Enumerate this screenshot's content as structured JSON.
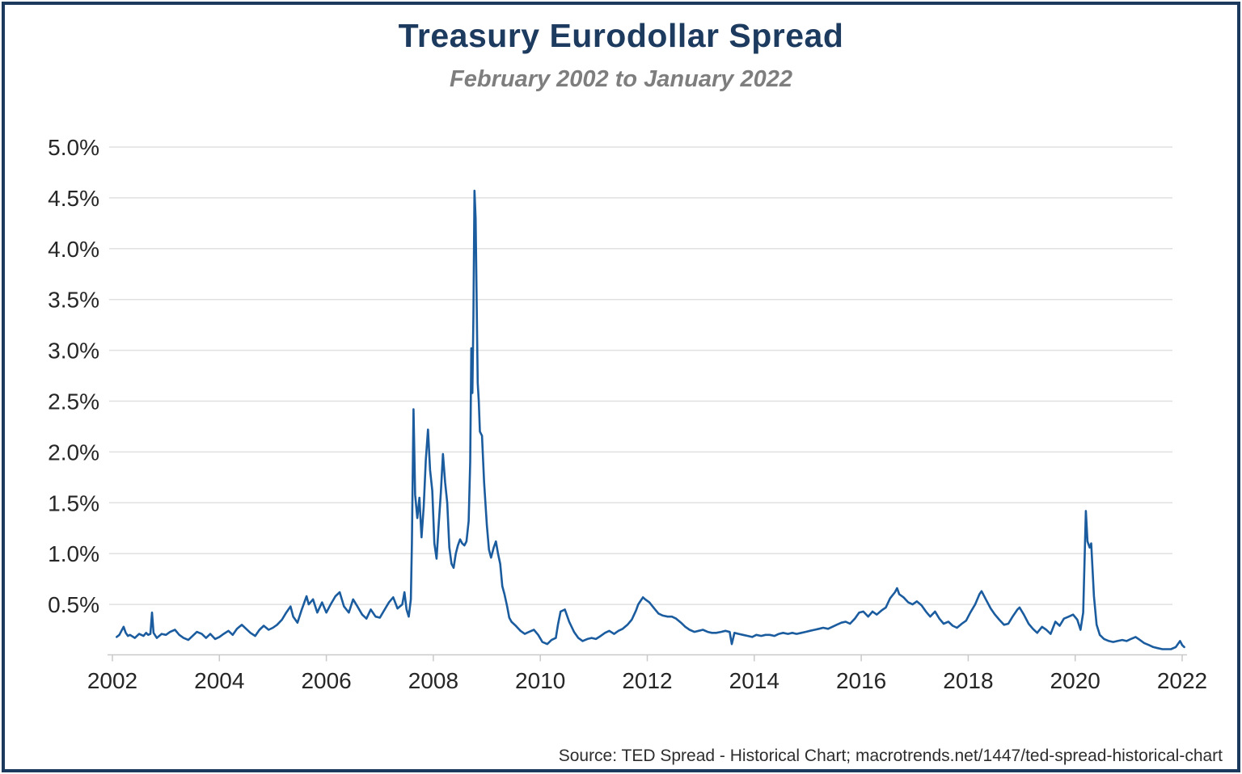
{
  "page": {
    "title": "Treasury Eurodollar Spread",
    "subtitle": "February 2002 to January 2022",
    "source": "Source: TED Spread - Historical Chart; macrotrends.net/1447/ted-spread-historical-chart"
  },
  "chart_data": {
    "type": "line",
    "title": "Treasury Eurodollar Spread",
    "subtitle": "February 2002 to January 2022",
    "series_name": "TED Spread (%)",
    "xlabel": "",
    "ylabel": "",
    "xlim": [
      2002,
      2022.1
    ],
    "ylim": [
      0,
      5.2
    ],
    "grid": "horizontal",
    "legend": "none",
    "line_color": "#1b5c9f",
    "y_ticks": [
      {
        "value": 0.5,
        "label": "0.5%"
      },
      {
        "value": 1.0,
        "label": "1.0%"
      },
      {
        "value": 1.5,
        "label": "1.5%"
      },
      {
        "value": 2.0,
        "label": "2.0%"
      },
      {
        "value": 2.5,
        "label": "2.5%"
      },
      {
        "value": 3.0,
        "label": "3.0%"
      },
      {
        "value": 3.5,
        "label": "3.5%"
      },
      {
        "value": 4.0,
        "label": "4.0%"
      },
      {
        "value": 4.5,
        "label": "4.5%"
      },
      {
        "value": 5.0,
        "label": "5.0%"
      }
    ],
    "x_ticks": [
      {
        "value": 2002,
        "label": "2002"
      },
      {
        "value": 2004,
        "label": "2004"
      },
      {
        "value": 2006,
        "label": "2006"
      },
      {
        "value": 2008,
        "label": "2008"
      },
      {
        "value": 2010,
        "label": "2010"
      },
      {
        "value": 2012,
        "label": "2012"
      },
      {
        "value": 2014,
        "label": "2014"
      },
      {
        "value": 2016,
        "label": "2016"
      },
      {
        "value": 2018,
        "label": "2018"
      },
      {
        "value": 2020,
        "label": "2020"
      },
      {
        "value": 2022,
        "label": "2022"
      }
    ],
    "points": [
      [
        2002.08,
        0.18
      ],
      [
        2002.13,
        0.2
      ],
      [
        2002.17,
        0.24
      ],
      [
        2002.21,
        0.28
      ],
      [
        2002.25,
        0.22
      ],
      [
        2002.29,
        0.19
      ],
      [
        2002.33,
        0.2
      ],
      [
        2002.42,
        0.17
      ],
      [
        2002.5,
        0.21
      ],
      [
        2002.58,
        0.19
      ],
      [
        2002.63,
        0.22
      ],
      [
        2002.67,
        0.2
      ],
      [
        2002.71,
        0.21
      ],
      [
        2002.74,
        0.42
      ],
      [
        2002.77,
        0.22
      ],
      [
        2002.83,
        0.17
      ],
      [
        2002.92,
        0.21
      ],
      [
        2003.0,
        0.2
      ],
      [
        2003.08,
        0.23
      ],
      [
        2003.17,
        0.25
      ],
      [
        2003.25,
        0.2
      ],
      [
        2003.33,
        0.17
      ],
      [
        2003.42,
        0.15
      ],
      [
        2003.5,
        0.19
      ],
      [
        2003.58,
        0.23
      ],
      [
        2003.67,
        0.21
      ],
      [
        2003.75,
        0.17
      ],
      [
        2003.83,
        0.21
      ],
      [
        2003.92,
        0.16
      ],
      [
        2004.0,
        0.18
      ],
      [
        2004.08,
        0.21
      ],
      [
        2004.17,
        0.24
      ],
      [
        2004.25,
        0.2
      ],
      [
        2004.33,
        0.26
      ],
      [
        2004.42,
        0.3
      ],
      [
        2004.5,
        0.26
      ],
      [
        2004.58,
        0.22
      ],
      [
        2004.67,
        0.19
      ],
      [
        2004.75,
        0.25
      ],
      [
        2004.83,
        0.29
      ],
      [
        2004.92,
        0.25
      ],
      [
        2005.0,
        0.27
      ],
      [
        2005.08,
        0.3
      ],
      [
        2005.17,
        0.35
      ],
      [
        2005.25,
        0.42
      ],
      [
        2005.33,
        0.48
      ],
      [
        2005.38,
        0.38
      ],
      [
        2005.46,
        0.32
      ],
      [
        2005.54,
        0.45
      ],
      [
        2005.63,
        0.58
      ],
      [
        2005.67,
        0.5
      ],
      [
        2005.75,
        0.55
      ],
      [
        2005.83,
        0.42
      ],
      [
        2005.92,
        0.52
      ],
      [
        2006.0,
        0.42
      ],
      [
        2006.08,
        0.5
      ],
      [
        2006.17,
        0.58
      ],
      [
        2006.25,
        0.62
      ],
      [
        2006.33,
        0.48
      ],
      [
        2006.42,
        0.42
      ],
      [
        2006.5,
        0.55
      ],
      [
        2006.58,
        0.48
      ],
      [
        2006.67,
        0.4
      ],
      [
        2006.75,
        0.36
      ],
      [
        2006.83,
        0.45
      ],
      [
        2006.92,
        0.38
      ],
      [
        2007.0,
        0.37
      ],
      [
        2007.08,
        0.44
      ],
      [
        2007.17,
        0.52
      ],
      [
        2007.25,
        0.57
      ],
      [
        2007.33,
        0.46
      ],
      [
        2007.42,
        0.5
      ],
      [
        2007.46,
        0.62
      ],
      [
        2007.5,
        0.45
      ],
      [
        2007.54,
        0.38
      ],
      [
        2007.58,
        0.55
      ],
      [
        2007.6,
        1.1
      ],
      [
        2007.63,
        2.42
      ],
      [
        2007.66,
        1.58
      ],
      [
        2007.7,
        1.35
      ],
      [
        2007.74,
        1.55
      ],
      [
        2007.78,
        1.16
      ],
      [
        2007.82,
        1.46
      ],
      [
        2007.86,
        1.92
      ],
      [
        2007.9,
        2.22
      ],
      [
        2007.94,
        1.82
      ],
      [
        2007.98,
        1.62
      ],
      [
        2008.02,
        1.1
      ],
      [
        2008.06,
        0.95
      ],
      [
        2008.1,
        1.28
      ],
      [
        2008.14,
        1.6
      ],
      [
        2008.18,
        1.98
      ],
      [
        2008.22,
        1.7
      ],
      [
        2008.26,
        1.5
      ],
      [
        2008.3,
        1.06
      ],
      [
        2008.34,
        0.9
      ],
      [
        2008.38,
        0.86
      ],
      [
        2008.42,
        1.0
      ],
      [
        2008.46,
        1.08
      ],
      [
        2008.5,
        1.14
      ],
      [
        2008.54,
        1.1
      ],
      [
        2008.58,
        1.08
      ],
      [
        2008.62,
        1.12
      ],
      [
        2008.66,
        1.32
      ],
      [
        2008.69,
        1.9
      ],
      [
        2008.71,
        3.02
      ],
      [
        2008.73,
        2.58
      ],
      [
        2008.75,
        3.35
      ],
      [
        2008.77,
        4.57
      ],
      [
        2008.79,
        4.3
      ],
      [
        2008.81,
        3.48
      ],
      [
        2008.83,
        2.68
      ],
      [
        2008.85,
        2.5
      ],
      [
        2008.87,
        2.2
      ],
      [
        2008.91,
        2.16
      ],
      [
        2008.95,
        1.7
      ],
      [
        2009.0,
        1.28
      ],
      [
        2009.04,
        1.04
      ],
      [
        2009.08,
        0.96
      ],
      [
        2009.13,
        1.06
      ],
      [
        2009.17,
        1.12
      ],
      [
        2009.21,
        1.0
      ],
      [
        2009.25,
        0.9
      ],
      [
        2009.29,
        0.68
      ],
      [
        2009.33,
        0.6
      ],
      [
        2009.38,
        0.48
      ],
      [
        2009.42,
        0.37
      ],
      [
        2009.46,
        0.33
      ],
      [
        2009.54,
        0.29
      ],
      [
        2009.63,
        0.24
      ],
      [
        2009.71,
        0.21
      ],
      [
        2009.79,
        0.23
      ],
      [
        2009.88,
        0.25
      ],
      [
        2009.96,
        0.2
      ],
      [
        2010.04,
        0.13
      ],
      [
        2010.13,
        0.11
      ],
      [
        2010.21,
        0.15
      ],
      [
        2010.29,
        0.17
      ],
      [
        2010.33,
        0.3
      ],
      [
        2010.38,
        0.43
      ],
      [
        2010.46,
        0.45
      ],
      [
        2010.54,
        0.33
      ],
      [
        2010.63,
        0.23
      ],
      [
        2010.71,
        0.17
      ],
      [
        2010.79,
        0.14
      ],
      [
        2010.88,
        0.16
      ],
      [
        2010.96,
        0.17
      ],
      [
        2011.04,
        0.16
      ],
      [
        2011.13,
        0.19
      ],
      [
        2011.21,
        0.22
      ],
      [
        2011.29,
        0.24
      ],
      [
        2011.38,
        0.21
      ],
      [
        2011.46,
        0.24
      ],
      [
        2011.54,
        0.26
      ],
      [
        2011.63,
        0.3
      ],
      [
        2011.71,
        0.35
      ],
      [
        2011.79,
        0.44
      ],
      [
        2011.83,
        0.5
      ],
      [
        2011.88,
        0.54
      ],
      [
        2011.92,
        0.57
      ],
      [
        2011.96,
        0.55
      ],
      [
        2012.04,
        0.52
      ],
      [
        2012.13,
        0.46
      ],
      [
        2012.21,
        0.41
      ],
      [
        2012.29,
        0.39
      ],
      [
        2012.38,
        0.38
      ],
      [
        2012.46,
        0.38
      ],
      [
        2012.54,
        0.36
      ],
      [
        2012.63,
        0.32
      ],
      [
        2012.71,
        0.28
      ],
      [
        2012.79,
        0.25
      ],
      [
        2012.88,
        0.23
      ],
      [
        2012.96,
        0.24
      ],
      [
        2013.04,
        0.25
      ],
      [
        2013.13,
        0.23
      ],
      [
        2013.21,
        0.22
      ],
      [
        2013.29,
        0.22
      ],
      [
        2013.38,
        0.23
      ],
      [
        2013.46,
        0.24
      ],
      [
        2013.54,
        0.23
      ],
      [
        2013.58,
        0.11
      ],
      [
        2013.63,
        0.22
      ],
      [
        2013.71,
        0.21
      ],
      [
        2013.79,
        0.2
      ],
      [
        2013.88,
        0.19
      ],
      [
        2013.96,
        0.18
      ],
      [
        2014.04,
        0.2
      ],
      [
        2014.13,
        0.19
      ],
      [
        2014.21,
        0.2
      ],
      [
        2014.29,
        0.2
      ],
      [
        2014.38,
        0.19
      ],
      [
        2014.46,
        0.21
      ],
      [
        2014.54,
        0.22
      ],
      [
        2014.63,
        0.21
      ],
      [
        2014.71,
        0.22
      ],
      [
        2014.79,
        0.21
      ],
      [
        2014.88,
        0.22
      ],
      [
        2014.96,
        0.23
      ],
      [
        2015.04,
        0.24
      ],
      [
        2015.13,
        0.25
      ],
      [
        2015.21,
        0.26
      ],
      [
        2015.29,
        0.27
      ],
      [
        2015.38,
        0.26
      ],
      [
        2015.46,
        0.28
      ],
      [
        2015.54,
        0.3
      ],
      [
        2015.63,
        0.32
      ],
      [
        2015.71,
        0.33
      ],
      [
        2015.79,
        0.31
      ],
      [
        2015.88,
        0.36
      ],
      [
        2015.96,
        0.42
      ],
      [
        2016.04,
        0.43
      ],
      [
        2016.13,
        0.38
      ],
      [
        2016.21,
        0.43
      ],
      [
        2016.29,
        0.4
      ],
      [
        2016.38,
        0.44
      ],
      [
        2016.46,
        0.47
      ],
      [
        2016.54,
        0.56
      ],
      [
        2016.63,
        0.62
      ],
      [
        2016.67,
        0.66
      ],
      [
        2016.71,
        0.6
      ],
      [
        2016.79,
        0.57
      ],
      [
        2016.88,
        0.52
      ],
      [
        2016.96,
        0.5
      ],
      [
        2017.04,
        0.53
      ],
      [
        2017.13,
        0.49
      ],
      [
        2017.21,
        0.43
      ],
      [
        2017.29,
        0.38
      ],
      [
        2017.38,
        0.43
      ],
      [
        2017.46,
        0.36
      ],
      [
        2017.54,
        0.31
      ],
      [
        2017.63,
        0.33
      ],
      [
        2017.71,
        0.29
      ],
      [
        2017.79,
        0.27
      ],
      [
        2017.88,
        0.31
      ],
      [
        2017.96,
        0.34
      ],
      [
        2018.04,
        0.42
      ],
      [
        2018.13,
        0.5
      ],
      [
        2018.21,
        0.6
      ],
      [
        2018.25,
        0.63
      ],
      [
        2018.33,
        0.55
      ],
      [
        2018.42,
        0.46
      ],
      [
        2018.5,
        0.4
      ],
      [
        2018.58,
        0.35
      ],
      [
        2018.67,
        0.3
      ],
      [
        2018.75,
        0.31
      ],
      [
        2018.83,
        0.38
      ],
      [
        2018.92,
        0.45
      ],
      [
        2018.96,
        0.47
      ],
      [
        2019.04,
        0.4
      ],
      [
        2019.13,
        0.31
      ],
      [
        2019.21,
        0.26
      ],
      [
        2019.29,
        0.22
      ],
      [
        2019.38,
        0.28
      ],
      [
        2019.46,
        0.25
      ],
      [
        2019.54,
        0.21
      ],
      [
        2019.63,
        0.33
      ],
      [
        2019.71,
        0.29
      ],
      [
        2019.79,
        0.36
      ],
      [
        2019.88,
        0.38
      ],
      [
        2019.96,
        0.4
      ],
      [
        2020.04,
        0.35
      ],
      [
        2020.1,
        0.25
      ],
      [
        2020.15,
        0.42
      ],
      [
        2020.2,
        1.42
      ],
      [
        2020.23,
        1.12
      ],
      [
        2020.27,
        1.06
      ],
      [
        2020.3,
        1.1
      ],
      [
        2020.35,
        0.58
      ],
      [
        2020.4,
        0.3
      ],
      [
        2020.46,
        0.2
      ],
      [
        2020.54,
        0.16
      ],
      [
        2020.63,
        0.14
      ],
      [
        2020.71,
        0.13
      ],
      [
        2020.79,
        0.14
      ],
      [
        2020.88,
        0.15
      ],
      [
        2020.96,
        0.14
      ],
      [
        2021.04,
        0.16
      ],
      [
        2021.13,
        0.18
      ],
      [
        2021.21,
        0.15
      ],
      [
        2021.29,
        0.12
      ],
      [
        2021.38,
        0.1
      ],
      [
        2021.46,
        0.08
      ],
      [
        2021.54,
        0.07
      ],
      [
        2021.63,
        0.06
      ],
      [
        2021.71,
        0.06
      ],
      [
        2021.79,
        0.06
      ],
      [
        2021.88,
        0.08
      ],
      [
        2021.96,
        0.14
      ],
      [
        2022.0,
        0.1
      ],
      [
        2022.04,
        0.08
      ]
    ]
  }
}
